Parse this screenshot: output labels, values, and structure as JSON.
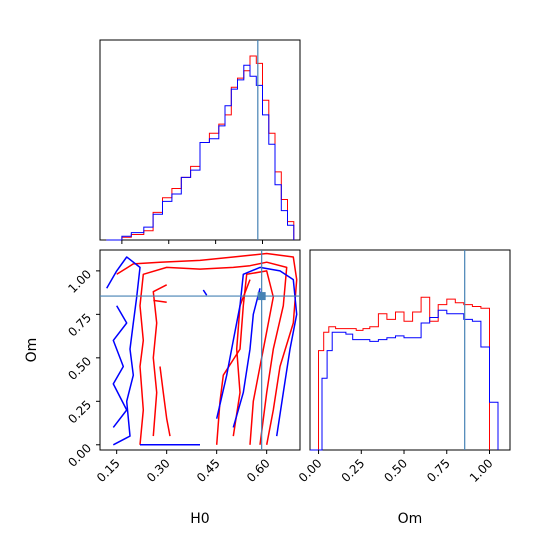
{
  "chart_data": {
    "type": "corner",
    "params": [
      "H0",
      "Om"
    ],
    "truths": {
      "H0": 0.585,
      "Om": 0.855
    },
    "truth_color": "#4682b4",
    "series": [
      {
        "color": "#ff0000"
      },
      {
        "color": "#0000ff"
      }
    ],
    "hist_h0": {
      "xlim": [
        0.08,
        0.72
      ],
      "red": [
        [
          0.1,
          0.0
        ],
        [
          0.15,
          0.015
        ],
        [
          0.18,
          0.03
        ],
        [
          0.22,
          0.05
        ],
        [
          0.25,
          0.15
        ],
        [
          0.28,
          0.23
        ],
        [
          0.31,
          0.28
        ],
        [
          0.34,
          0.34
        ],
        [
          0.37,
          0.4
        ],
        [
          0.4,
          0.53
        ],
        [
          0.43,
          0.58
        ],
        [
          0.46,
          0.63
        ],
        [
          0.48,
          0.68
        ],
        [
          0.5,
          0.83
        ],
        [
          0.52,
          0.88
        ],
        [
          0.54,
          0.92
        ],
        [
          0.56,
          1.0
        ],
        [
          0.58,
          0.96
        ],
        [
          0.6,
          0.76
        ],
        [
          0.62,
          0.58
        ],
        [
          0.64,
          0.37
        ],
        [
          0.66,
          0.22
        ],
        [
          0.68,
          0.1
        ],
        [
          0.7,
          0.0
        ]
      ],
      "blue": [
        [
          0.1,
          0.0
        ],
        [
          0.15,
          0.02
        ],
        [
          0.18,
          0.04
        ],
        [
          0.22,
          0.07
        ],
        [
          0.25,
          0.14
        ],
        [
          0.28,
          0.21
        ],
        [
          0.31,
          0.25
        ],
        [
          0.34,
          0.34
        ],
        [
          0.37,
          0.38
        ],
        [
          0.4,
          0.53
        ],
        [
          0.43,
          0.55
        ],
        [
          0.46,
          0.62
        ],
        [
          0.48,
          0.73
        ],
        [
          0.5,
          0.82
        ],
        [
          0.52,
          0.87
        ],
        [
          0.54,
          0.95
        ],
        [
          0.56,
          0.89
        ],
        [
          0.58,
          0.84
        ],
        [
          0.6,
          0.68
        ],
        [
          0.62,
          0.52
        ],
        [
          0.64,
          0.3
        ],
        [
          0.66,
          0.16
        ],
        [
          0.68,
          0.08
        ],
        [
          0.7,
          0.0
        ]
      ]
    },
    "hist_om": {
      "xlim": [
        -0.05,
        1.12
      ],
      "red": [
        [
          -0.05,
          0.0
        ],
        [
          0.0,
          0.54
        ],
        [
          0.03,
          0.64
        ],
        [
          0.06,
          0.67
        ],
        [
          0.1,
          0.66
        ],
        [
          0.14,
          0.66
        ],
        [
          0.18,
          0.66
        ],
        [
          0.22,
          0.65
        ],
        [
          0.26,
          0.66
        ],
        [
          0.3,
          0.67
        ],
        [
          0.35,
          0.74
        ],
        [
          0.4,
          0.71
        ],
        [
          0.45,
          0.75
        ],
        [
          0.5,
          0.7
        ],
        [
          0.55,
          0.75
        ],
        [
          0.6,
          0.83
        ],
        [
          0.65,
          0.7
        ],
        [
          0.7,
          0.79
        ],
        [
          0.75,
          0.82
        ],
        [
          0.8,
          0.8
        ],
        [
          0.85,
          0.79
        ],
        [
          0.9,
          0.78
        ],
        [
          0.95,
          0.77
        ],
        [
          1.0,
          0.0
        ]
      ],
      "blue": [
        [
          -0.05,
          0.0
        ],
        [
          0.02,
          0.39
        ],
        [
          0.05,
          0.54
        ],
        [
          0.08,
          0.64
        ],
        [
          0.12,
          0.64
        ],
        [
          0.16,
          0.63
        ],
        [
          0.2,
          0.6
        ],
        [
          0.25,
          0.6
        ],
        [
          0.3,
          0.59
        ],
        [
          0.35,
          0.6
        ],
        [
          0.4,
          0.61
        ],
        [
          0.45,
          0.62
        ],
        [
          0.5,
          0.61
        ],
        [
          0.55,
          0.61
        ],
        [
          0.6,
          0.69
        ],
        [
          0.65,
          0.72
        ],
        [
          0.7,
          0.76
        ],
        [
          0.75,
          0.74
        ],
        [
          0.8,
          0.74
        ],
        [
          0.85,
          0.71
        ],
        [
          0.9,
          0.7
        ],
        [
          0.95,
          0.56
        ],
        [
          1.0,
          0.26
        ],
        [
          1.05,
          0.0
        ]
      ]
    },
    "contour": {
      "xlim": [
        0.1,
        0.7
      ],
      "ylim": [
        -0.03,
        1.12
      ],
      "red_paths": [
        [
          [
            0.15,
            0.98
          ],
          [
            0.2,
            1.04
          ],
          [
            0.28,
            1.05
          ],
          [
            0.4,
            1.06
          ],
          [
            0.5,
            1.08
          ],
          [
            0.6,
            1.1
          ],
          [
            0.68,
            1.08
          ],
          [
            0.69,
            0.95
          ],
          [
            0.68,
            0.7
          ],
          [
            0.64,
            0.45
          ],
          [
            0.62,
            0.2
          ],
          [
            0.6,
            0.0
          ]
        ],
        [
          [
            0.22,
            0.0
          ],
          [
            0.23,
            0.2
          ],
          [
            0.22,
            0.45
          ],
          [
            0.23,
            0.6
          ],
          [
            0.22,
            0.8
          ],
          [
            0.23,
            0.98
          ],
          [
            0.3,
            1.02
          ],
          [
            0.4,
            1.01
          ],
          [
            0.5,
            1.02
          ],
          [
            0.55,
            1.03
          ],
          [
            0.6,
            1.05
          ],
          [
            0.66,
            1.02
          ],
          [
            0.65,
            0.8
          ],
          [
            0.62,
            0.55
          ],
          [
            0.6,
            0.3
          ],
          [
            0.58,
            0.0
          ]
        ],
        [
          [
            0.26,
            0.05
          ],
          [
            0.27,
            0.3
          ],
          [
            0.26,
            0.5
          ],
          [
            0.27,
            0.7
          ],
          [
            0.26,
            0.88
          ],
          [
            0.3,
            0.92
          ]
        ],
        [
          [
            0.45,
            0.0
          ],
          [
            0.46,
            0.25
          ],
          [
            0.47,
            0.4
          ],
          [
            0.52,
            0.55
          ],
          [
            0.53,
            0.8
          ],
          [
            0.54,
            0.98
          ],
          [
            0.6,
            1.0
          ],
          [
            0.62,
            0.85
          ],
          [
            0.6,
            0.65
          ],
          [
            0.58,
            0.45
          ],
          [
            0.56,
            0.25
          ],
          [
            0.55,
            0.0
          ]
        ],
        [
          [
            0.5,
            0.05
          ],
          [
            0.52,
            0.3
          ],
          [
            0.51,
            0.55
          ],
          [
            0.52,
            0.8
          ],
          [
            0.55,
            0.95
          ]
        ],
        [
          [
            0.28,
            0.45
          ],
          [
            0.29,
            0.3
          ],
          [
            0.3,
            0.15
          ],
          [
            0.31,
            0.05
          ]
        ],
        [
          [
            0.26,
            0.83
          ],
          [
            0.3,
            0.82
          ]
        ]
      ],
      "blue_paths": [
        [
          [
            0.12,
            0.9
          ],
          [
            0.15,
            1.0
          ],
          [
            0.18,
            1.08
          ],
          [
            0.22,
            1.02
          ],
          [
            0.21,
            0.85
          ],
          [
            0.2,
            0.7
          ],
          [
            0.19,
            0.55
          ],
          [
            0.2,
            0.4
          ],
          [
            0.18,
            0.25
          ],
          [
            0.19,
            0.05
          ],
          [
            0.14,
            0.0
          ]
        ],
        [
          [
            0.14,
            0.1
          ],
          [
            0.18,
            0.2
          ],
          [
            0.14,
            0.35
          ],
          [
            0.17,
            0.45
          ],
          [
            0.14,
            0.6
          ],
          [
            0.18,
            0.7
          ],
          [
            0.15,
            0.8
          ]
        ],
        [
          [
            0.22,
            0.0
          ],
          [
            0.28,
            0.0
          ],
          [
            0.35,
            0.0
          ],
          [
            0.4,
            0.0
          ]
        ],
        [
          [
            0.45,
            0.15
          ],
          [
            0.48,
            0.4
          ],
          [
            0.5,
            0.6
          ],
          [
            0.52,
            0.8
          ],
          [
            0.53,
            0.98
          ],
          [
            0.58,
            1.02
          ],
          [
            0.64,
            1.0
          ],
          [
            0.68,
            0.95
          ],
          [
            0.69,
            0.75
          ],
          [
            0.67,
            0.55
          ],
          [
            0.65,
            0.3
          ],
          [
            0.63,
            0.05
          ]
        ],
        [
          [
            0.5,
            0.1
          ],
          [
            0.53,
            0.3
          ],
          [
            0.55,
            0.55
          ],
          [
            0.56,
            0.75
          ],
          [
            0.58,
            0.9
          ]
        ],
        [
          [
            0.41,
            0.89
          ],
          [
            0.42,
            0.86
          ]
        ],
        [
          [
            0.58,
            0.88
          ],
          [
            0.59,
            0.84
          ]
        ]
      ]
    },
    "axes": {
      "h0_ticks": [
        "0.15",
        "0.30",
        "0.45",
        "0.60"
      ],
      "om_ticks": [
        "0.00",
        "0.25",
        "0.50",
        "0.75",
        "1.00"
      ],
      "xlabel_left": "H0",
      "ylabel_left": "Om",
      "xlabel_right": "Om"
    }
  }
}
